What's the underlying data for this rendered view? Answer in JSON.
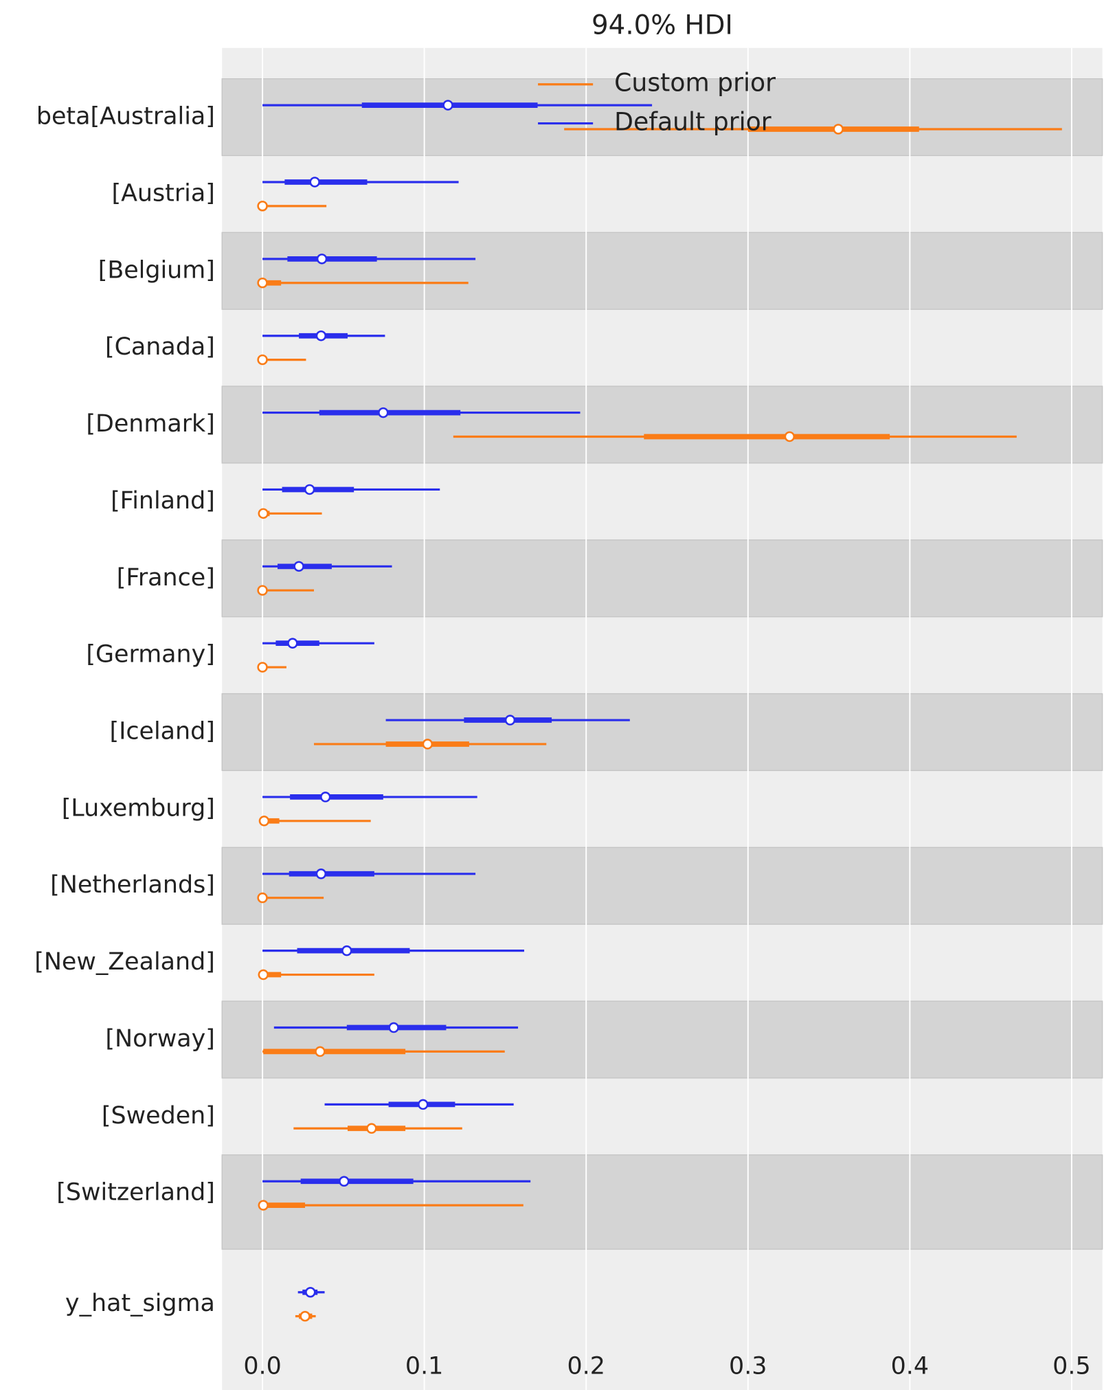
{
  "chart_data": {
    "type": "forest",
    "title": "94.0% HDI",
    "categories": [
      "beta[Australia]",
      "[Austria]",
      "[Belgium]",
      "[Canada]",
      "[Denmark]",
      "[Finland]",
      "[France]",
      "[Germany]",
      "[Iceland]",
      "[Luxemburg]",
      "[Netherlands]",
      "[New_Zealand]",
      "[Norway]",
      "[Sweden]",
      "[Switzerland]",
      "y_hat_sigma"
    ],
    "series": [
      {
        "name": "Custom prior",
        "color": "#fa7c17",
        "hdi_low": [
          0.1864,
          0,
          0,
          0,
          0.1179,
          0,
          0,
          0,
          0.0318,
          0,
          0,
          0,
          0,
          0.0192,
          0,
          0.0203
        ],
        "hdi_high": [
          0.494,
          0.0395,
          0.1272,
          0.0269,
          0.466,
          0.0367,
          0.0318,
          0.0148,
          0.1754,
          0.0669,
          0.0378,
          0.0691,
          0.1497,
          0.1234,
          0.1612,
          0.0329
        ],
        "iqr_low": [
          0.3,
          0,
          0,
          0,
          0.2357,
          0,
          0,
          0,
          0.0762,
          0,
          0,
          0,
          0.0005,
          0.0526,
          0,
          0.0225
        ],
        "iqr_high": [
          0.4057,
          0.001,
          0.0115,
          0.001,
          0.3876,
          0.0044,
          0.001,
          0.001,
          0.1277,
          0.0104,
          0.001,
          0.0115,
          0.0883,
          0.0883,
          0.0263,
          0.0307
        ],
        "values": [
          0.3558,
          0,
          0,
          0,
          0.3257,
          0.0005,
          0,
          0,
          0.102,
          0.001,
          0,
          0.0005,
          0.0356,
          0.0674,
          0.0005,
          0.0263
        ]
      },
      {
        "name": "Default prior",
        "color": "#2a2eec",
        "hdi_low": [
          0,
          0,
          0,
          0,
          0,
          0,
          0,
          0,
          0.0762,
          0,
          0,
          0,
          0.0071,
          0.0384,
          0,
          0.0219
        ],
        "hdi_high": [
          0.2407,
          0.1212,
          0.1316,
          0.0757,
          0.1963,
          0.1096,
          0.08,
          0.0691,
          0.227,
          0.1327,
          0.1316,
          0.1617,
          0.1579,
          0.1552,
          0.1656,
          0.0384
        ],
        "iqr_low": [
          0.0614,
          0.0137,
          0.0154,
          0.0225,
          0.0351,
          0.0121,
          0.0093,
          0.0082,
          0.1245,
          0.017,
          0.0164,
          0.0214,
          0.0521,
          0.0779,
          0.0236,
          0.0247
        ],
        "iqr_high": [
          0.17,
          0.0647,
          0.0707,
          0.0526,
          0.1223,
          0.0565,
          0.0428,
          0.0351,
          0.1787,
          0.0746,
          0.0691,
          0.091,
          0.1135,
          0.119,
          0.0932,
          0.034
        ],
        "values": [
          0.1146,
          0.0323,
          0.0367,
          0.0362,
          0.0746,
          0.0291,
          0.0225,
          0.0186,
          0.153,
          0.0389,
          0.0362,
          0.0521,
          0.0811,
          0.0992,
          0.0504,
          0.0296
        ]
      }
    ],
    "xlim": [
      -0.025,
      0.519
    ],
    "xticks": [
      {
        "value": 0,
        "label": "0.0"
      },
      0.1,
      0.2,
      0.3,
      0.4,
      0.5
    ],
    "grid": true,
    "legend": "upper center"
  }
}
